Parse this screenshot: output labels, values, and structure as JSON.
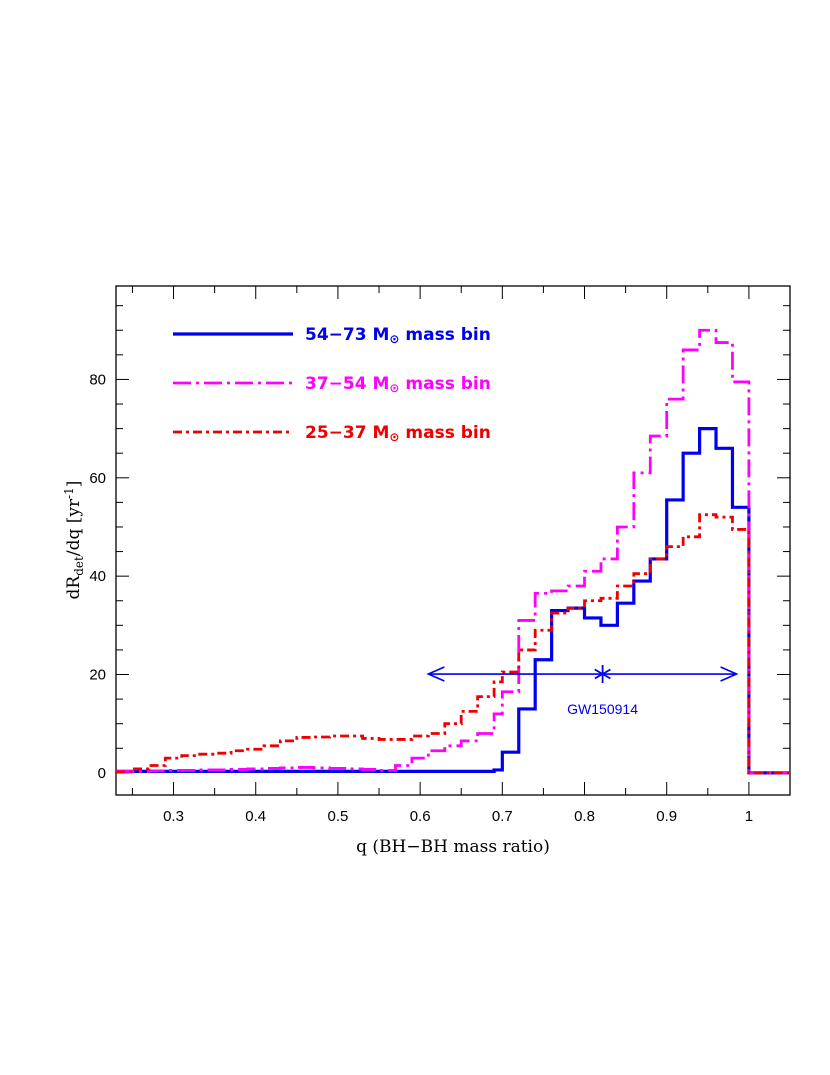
{
  "chart_data": {
    "type": "line",
    "xlabel": "q (BH−BH mass ratio)",
    "ylabel_parts": {
      "main": "dR",
      "sub": "det",
      "mid": "/dq [yr",
      "sup": "-1",
      "end": "]"
    },
    "xlim": [
      0.23,
      1.05
    ],
    "ylim": [
      -4.5,
      99
    ],
    "x_ticks": [
      "0.3",
      "0.4",
      "0.5",
      "0.6",
      "0.7",
      "0.8",
      "0.9",
      "1"
    ],
    "y_ticks": [
      "0",
      "20",
      "40",
      "60",
      "80"
    ],
    "legend_position": "top-left",
    "series": [
      {
        "name": "54−73 M⊙ mass bin",
        "name_parts": {
          "range": "54−73 M",
          "sym": "⊙",
          "rest": " mass bin"
        },
        "color": "#0000ee",
        "style": "solid",
        "step": true,
        "x": [
          0.23,
          0.25,
          0.27,
          0.29,
          0.31,
          0.33,
          0.35,
          0.37,
          0.39,
          0.41,
          0.43,
          0.45,
          0.47,
          0.49,
          0.51,
          0.53,
          0.55,
          0.57,
          0.59,
          0.61,
          0.63,
          0.65,
          0.67,
          0.69,
          0.7,
          0.72,
          0.74,
          0.76,
          0.78,
          0.8,
          0.82,
          0.84,
          0.86,
          0.88,
          0.9,
          0.92,
          0.94,
          0.96,
          0.98,
          1.0,
          1.05
        ],
        "y": [
          0.3,
          0.3,
          0.3,
          0.3,
          0.3,
          0.3,
          0.3,
          0.3,
          0.3,
          0.3,
          0.3,
          0.3,
          0.3,
          0.3,
          0.3,
          0.3,
          0.3,
          0.3,
          0.3,
          0.3,
          0.3,
          0.3,
          0.3,
          0.6,
          4.2,
          13,
          23,
          33,
          33.5,
          31.5,
          30,
          34.5,
          39,
          43.5,
          55.5,
          65,
          70,
          66,
          54,
          0,
          0
        ]
      },
      {
        "name": "37−54 M⊙ mass bin",
        "name_parts": {
          "range": "37−54 M",
          "sym": "⊙",
          "rest": " mass bin"
        },
        "color": "#ff00ff",
        "style": "dash-dot",
        "step": true,
        "x": [
          0.23,
          0.25,
          0.27,
          0.29,
          0.31,
          0.33,
          0.35,
          0.37,
          0.39,
          0.41,
          0.43,
          0.45,
          0.47,
          0.49,
          0.51,
          0.53,
          0.55,
          0.57,
          0.59,
          0.61,
          0.63,
          0.65,
          0.67,
          0.69,
          0.7,
          0.72,
          0.74,
          0.76,
          0.78,
          0.8,
          0.82,
          0.84,
          0.86,
          0.88,
          0.9,
          0.92,
          0.94,
          0.96,
          0.98,
          1.0,
          1.05
        ],
        "y": [
          0.3,
          0.3,
          0.4,
          0.5,
          0.5,
          0.6,
          0.6,
          0.7,
          0.8,
          0.9,
          1.0,
          1.1,
          1.0,
          0.9,
          0.8,
          0.7,
          0.5,
          1.5,
          3.0,
          4.5,
          5.5,
          6.5,
          8.0,
          12.0,
          16.5,
          31.0,
          36.5,
          37.0,
          38.0,
          41.0,
          43.5,
          50.0,
          61.0,
          68.5,
          76.0,
          86.0,
          90.0,
          87.5,
          79.5,
          0,
          0
        ]
      },
      {
        "name": "25−37 M⊙ mass bin",
        "name_parts": {
          "range": "25−37 M",
          "sym": "⊙",
          "rest": " mass bin"
        },
        "color": "#ee0000",
        "style": "dash-dot-short",
        "step": true,
        "x": [
          0.23,
          0.25,
          0.27,
          0.29,
          0.31,
          0.33,
          0.35,
          0.37,
          0.39,
          0.41,
          0.43,
          0.45,
          0.47,
          0.49,
          0.51,
          0.53,
          0.55,
          0.57,
          0.59,
          0.61,
          0.63,
          0.65,
          0.67,
          0.69,
          0.7,
          0.72,
          0.74,
          0.76,
          0.78,
          0.8,
          0.82,
          0.84,
          0.86,
          0.88,
          0.9,
          0.92,
          0.94,
          0.96,
          0.98,
          1.0,
          1.05
        ],
        "y": [
          0.2,
          0.8,
          1.5,
          3.0,
          3.5,
          3.8,
          4.0,
          4.5,
          4.8,
          5.5,
          6.5,
          7.2,
          7.3,
          7.5,
          7.5,
          7.0,
          6.8,
          6.8,
          7.5,
          8.0,
          10.0,
          12.5,
          15.5,
          18.5,
          20.5,
          25.0,
          29.0,
          32.5,
          33.5,
          35.0,
          35.5,
          38.0,
          40.5,
          43.5,
          46.0,
          48.0,
          52.5,
          52.0,
          49.5,
          0,
          0
        ]
      }
    ],
    "annotation": {
      "label": "GW150914",
      "point": {
        "x": 0.822,
        "y": 20.1
      },
      "range": [
        0.61,
        0.985
      ],
      "color": "#0000ee"
    }
  }
}
